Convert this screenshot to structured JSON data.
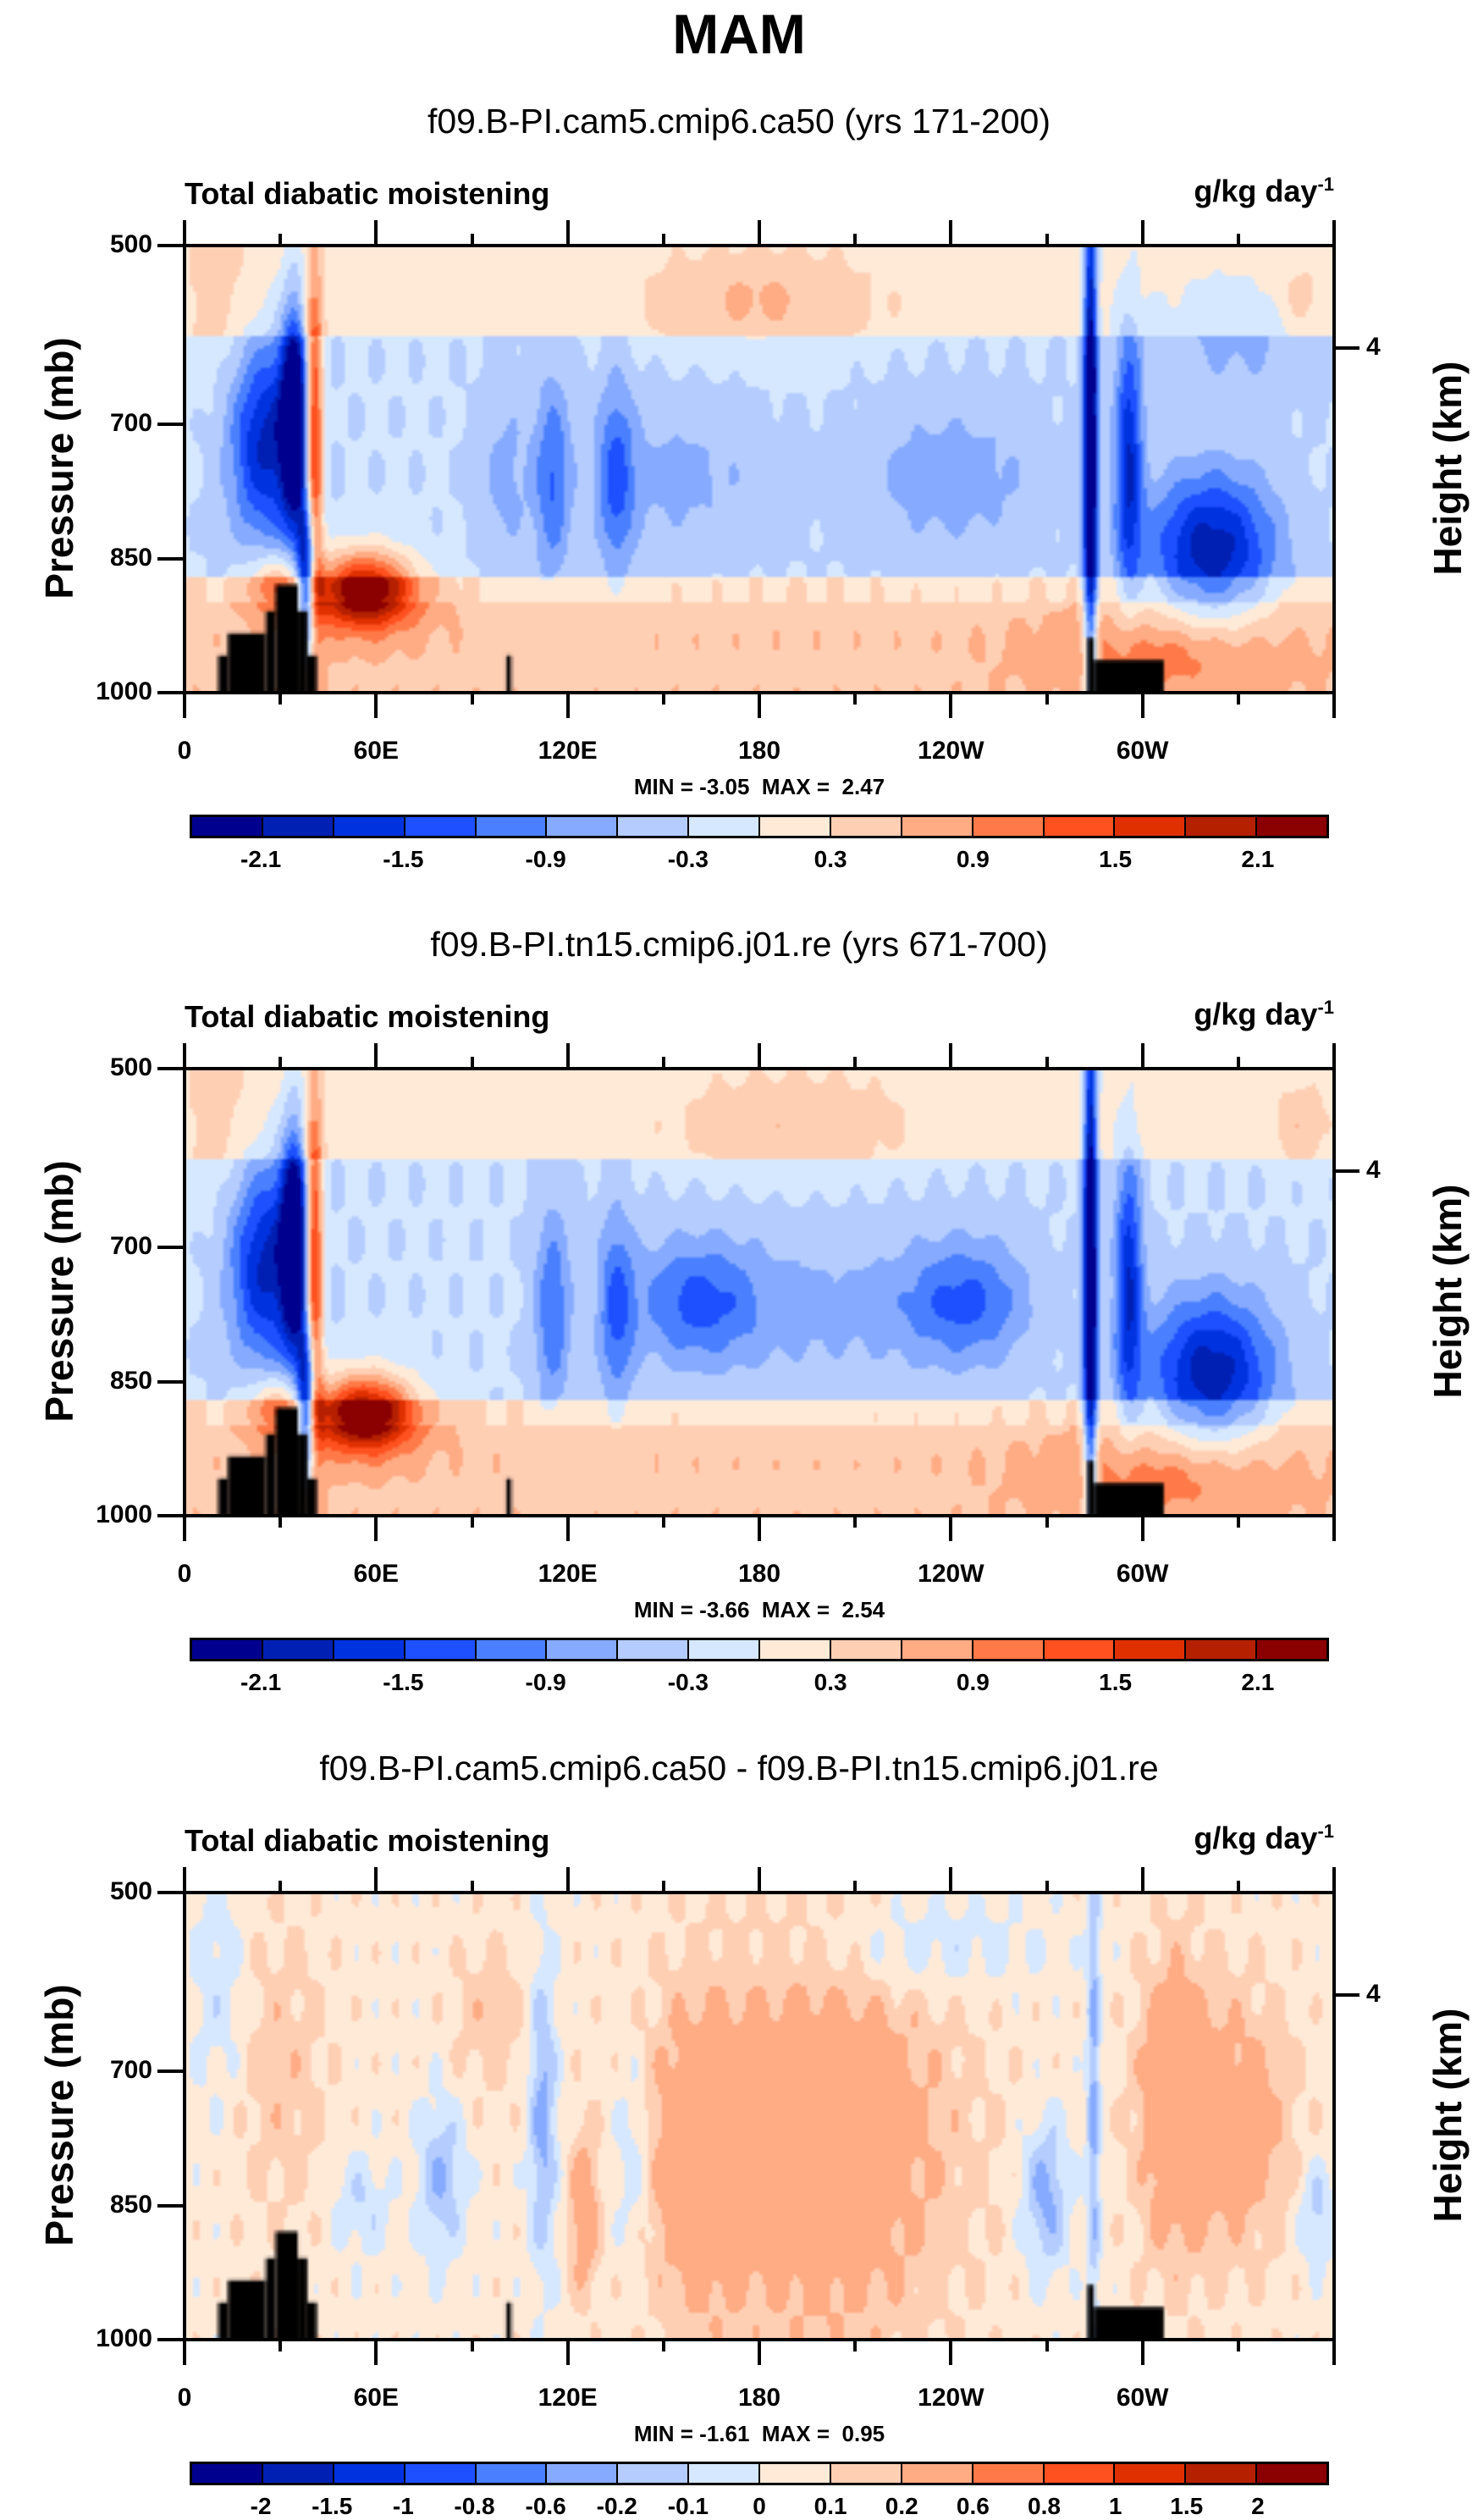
{
  "title": "MAM",
  "chart_data": [
    {
      "type": "heatmap",
      "subtitle": "f09.B-PI.cam5.cmip6.ca50 (yrs 171-200)",
      "left_string": "Total diabatic moistening",
      "units": "g/kg day",
      "units_exp": "-1",
      "ylabel": "Pressure (mb)",
      "y2label": "Height (km)",
      "yticks": [
        500,
        700,
        850,
        1000
      ],
      "y2ticks": [
        "4"
      ],
      "xticks": [
        "0",
        "60E",
        "120E",
        "180",
        "120W",
        "60W"
      ],
      "xlim": [
        0,
        360
      ],
      "ylim": [
        1000,
        500
      ],
      "min_max": "MIN = -3.05  MAX =  2.47",
      "levels": [
        -2.1,
        -1.8,
        -1.5,
        -1.2,
        -0.9,
        -0.6,
        -0.3,
        0,
        0.3,
        0.6,
        0.9,
        1.2,
        1.5,
        1.8,
        2.1
      ],
      "level_labels": [
        "-2.1",
        "-1.5",
        "-0.9",
        "-0.3",
        "0.3",
        "0.9",
        "1.5",
        "2.1"
      ]
    },
    {
      "type": "heatmap",
      "subtitle": "f09.B-PI.tn15.cmip6.j01.re (yrs 671-700)",
      "left_string": "Total diabatic moistening",
      "units": "g/kg day",
      "units_exp": "-1",
      "ylabel": "Pressure (mb)",
      "y2label": "Height (km)",
      "yticks": [
        500,
        700,
        850,
        1000
      ],
      "y2ticks": [
        "4"
      ],
      "xticks": [
        "0",
        "60E",
        "120E",
        "180",
        "120W",
        "60W"
      ],
      "xlim": [
        0,
        360
      ],
      "ylim": [
        1000,
        500
      ],
      "min_max": "MIN = -3.66  MAX =  2.54",
      "levels": [
        -2.1,
        -1.8,
        -1.5,
        -1.2,
        -0.9,
        -0.6,
        -0.3,
        0,
        0.3,
        0.6,
        0.9,
        1.2,
        1.5,
        1.8,
        2.1
      ],
      "level_labels": [
        "-2.1",
        "-1.5",
        "-0.9",
        "-0.3",
        "0.3",
        "0.9",
        "1.5",
        "2.1"
      ]
    },
    {
      "type": "heatmap",
      "subtitle": "f09.B-PI.cam5.cmip6.ca50 - f09.B-PI.tn15.cmip6.j01.re",
      "left_string": "Total diabatic moistening",
      "units": "g/kg day",
      "units_exp": "-1",
      "ylabel": "Pressure (mb)",
      "y2label": "Height (km)",
      "yticks": [
        500,
        700,
        850,
        1000
      ],
      "y2ticks": [
        "4"
      ],
      "xticks": [
        "0",
        "60E",
        "120E",
        "180",
        "120W",
        "60W"
      ],
      "xlim": [
        0,
        360
      ],
      "ylim": [
        1000,
        500
      ],
      "min_max": "MIN = -1.61  MAX =  0.95",
      "levels": [
        -2,
        -1.5,
        -1,
        -0.8,
        -0.6,
        -0.2,
        -0.1,
        0,
        0.1,
        0.2,
        0.6,
        0.8,
        1,
        1.5,
        2
      ],
      "level_labels": [
        "-2",
        "-1.5",
        "-1",
        "-0.8",
        "-0.6",
        "-0.2",
        "-0.1",
        "0",
        "0.1",
        "0.2",
        "0.6",
        "0.8",
        "1",
        "1.5",
        "2"
      ]
    }
  ],
  "colormap": [
    "#00008f",
    "#0020b4",
    "#0033e0",
    "#1e50ff",
    "#4a80ff",
    "#86aaff",
    "#b4ccff",
    "#d6e8ff",
    "#ffead8",
    "#ffcfb4",
    "#ffab84",
    "#ff7a48",
    "#ff5020",
    "#e03000",
    "#b42000",
    "#8b0000"
  ],
  "terrain_color": "#000000"
}
